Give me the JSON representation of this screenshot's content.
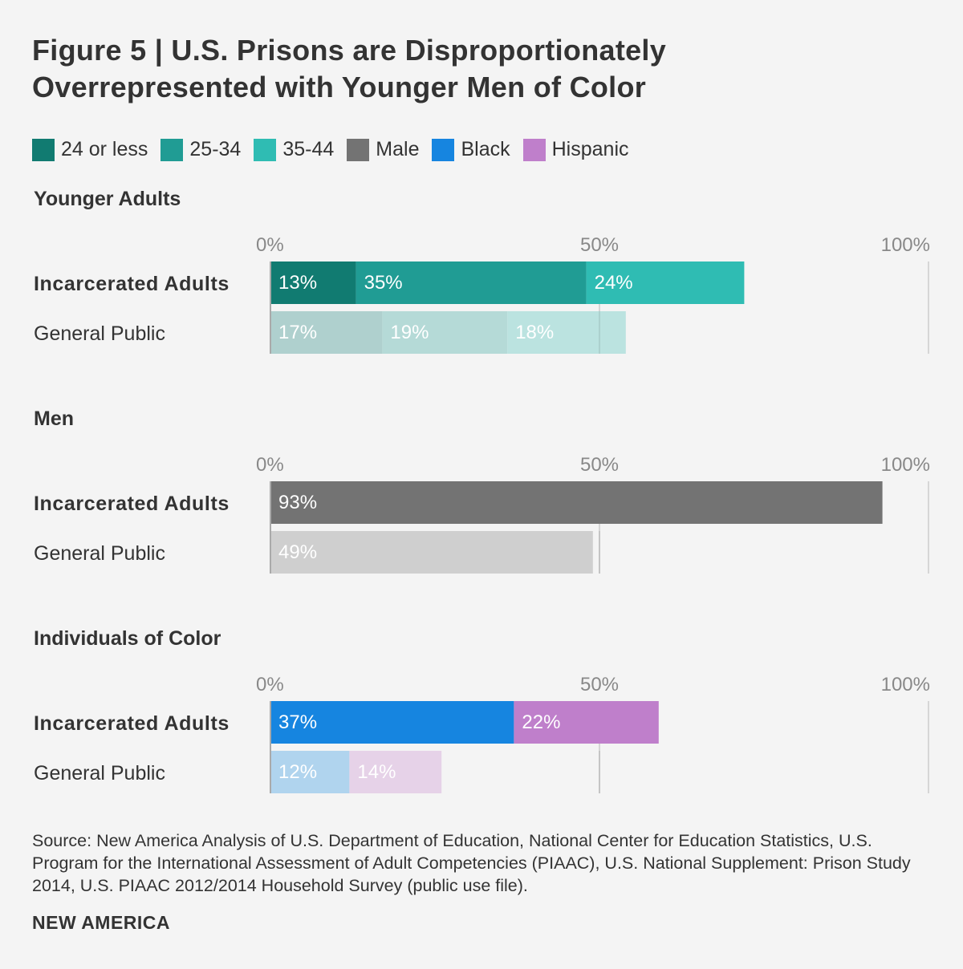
{
  "chart_data": [
    {
      "type": "bar",
      "orientation": "horizontal",
      "stacked": true,
      "title": "Younger Adults",
      "categories": [
        "Incarcerated Adults",
        "General Public"
      ],
      "series": [
        {
          "name": "24 or less",
          "values": [
            13,
            17
          ],
          "labels": [
            "13%",
            "17%"
          ],
          "color": "#117b71",
          "light_color": "#afd0ce"
        },
        {
          "name": "25-34",
          "values": [
            35,
            19
          ],
          "labels": [
            "35%",
            "19%"
          ],
          "color": "#209c94",
          "light_color": "#b5dad7"
        },
        {
          "name": "35-44",
          "values": [
            24,
            18
          ],
          "labels": [
            "24%",
            "18%"
          ],
          "color": "#2fbcb3",
          "light_color": "#bbe3e0"
        }
      ],
      "xlim": [
        0,
        100
      ],
      "ticks": [
        "0%",
        "50%",
        "100%"
      ]
    },
    {
      "type": "bar",
      "orientation": "horizontal",
      "stacked": true,
      "title": "Men",
      "categories": [
        "Incarcerated Adults",
        "General Public"
      ],
      "series": [
        {
          "name": "Male",
          "values": [
            93,
            49
          ],
          "labels": [
            "93%",
            "49%"
          ],
          "color": "#737373",
          "light_color": "#cfcfcf"
        }
      ],
      "xlim": [
        0,
        100
      ],
      "ticks": [
        "0%",
        "50%",
        "100%"
      ]
    },
    {
      "type": "bar",
      "orientation": "horizontal",
      "stacked": true,
      "title": "Individuals of Color",
      "categories": [
        "Incarcerated Adults",
        "General Public"
      ],
      "series": [
        {
          "name": "Black",
          "values": [
            37,
            12
          ],
          "labels": [
            "37%",
            "12%"
          ],
          "color": "#1685e0",
          "light_color": "#b0d4ee"
        },
        {
          "name": "Hispanic",
          "values": [
            22,
            14
          ],
          "labels": [
            "22%",
            "14%"
          ],
          "color": "#bf7fcb",
          "light_color": "#e6d2e8"
        }
      ],
      "xlim": [
        0,
        100
      ],
      "ticks": [
        "0%",
        "50%",
        "100%"
      ]
    }
  ],
  "header": {
    "title_line1": "Figure 5 | U.S. Prisons are Disproportionately",
    "title_line2": "Overrepresented with Younger Men of Color"
  },
  "legend": [
    {
      "label": "24 or less",
      "color": "#117b71"
    },
    {
      "label": "25-34",
      "color": "#209c94"
    },
    {
      "label": "35-44",
      "color": "#2fbcb3"
    },
    {
      "label": "Male",
      "color": "#737373"
    },
    {
      "label": "Black",
      "color": "#1685e0"
    },
    {
      "label": "Hispanic",
      "color": "#bf7fcb"
    }
  ],
  "footer": {
    "source": "Source: New America Analysis of U.S. Department of Education, National Center for Education Statistics, U.S. Program for the International Assessment of Adult Competencies (PIAAC), U.S. National Supplement: Prison Study 2014, U.S. PIAAC 2012/2014 Household Survey (public use file).",
    "brand": "NEW AMERICA"
  }
}
